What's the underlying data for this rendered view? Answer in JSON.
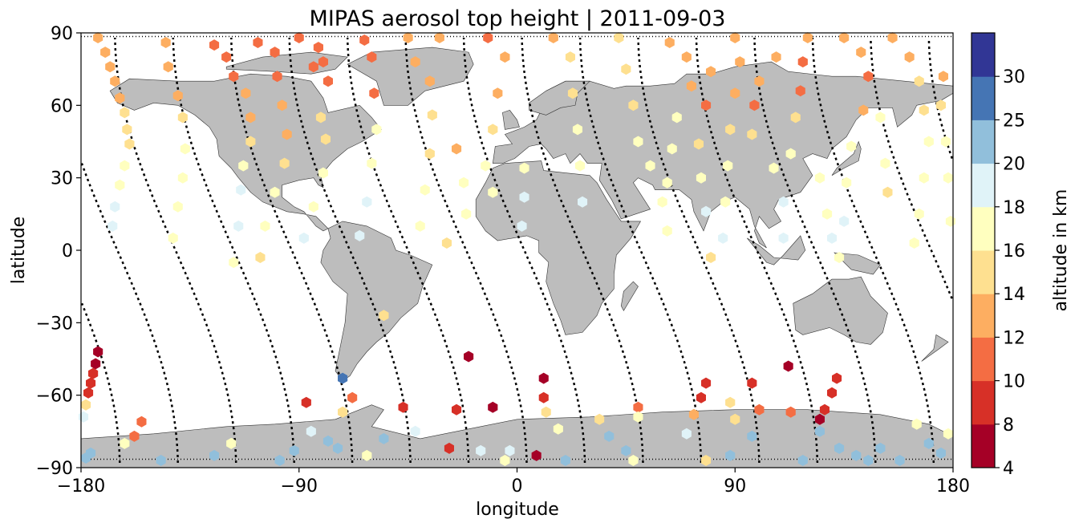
{
  "chart_data": {
    "type": "scatter",
    "title": "MIPAS aerosol top height | 2011-09-03",
    "xlabel": "longitude",
    "ylabel": "latitude",
    "xlim": [
      -180,
      180
    ],
    "ylim": [
      -90,
      90
    ],
    "xticks": [
      -180,
      -90,
      0,
      90,
      180
    ],
    "xtick_labels": [
      "−180",
      "−90",
      "0",
      "90",
      "180"
    ],
    "yticks": [
      -90,
      -60,
      -30,
      0,
      30,
      60,
      90
    ],
    "ytick_labels": [
      "−90",
      "−60",
      "−30",
      "0",
      "30",
      "60",
      "90"
    ],
    "colorbar": {
      "label": "altitude in km",
      "boundaries": [
        4,
        8,
        10,
        12,
        14,
        16,
        18,
        20,
        25,
        30
      ],
      "tick_labels": [
        "4",
        "8",
        "10",
        "12",
        "14",
        "16",
        "18",
        "20",
        "25",
        "30"
      ],
      "colors": [
        "#a50026",
        "#d73027",
        "#f46d43",
        "#fdae61",
        "#fee090",
        "#ffffbf",
        "#e0f3f8",
        "#91bfdb",
        "#4575b4",
        "#313695"
      ]
    },
    "background_map": "world land masses in light grey with country borders",
    "track_style": "black dotted orbit tracks where no aerosol top is detected",
    "colors": {
      "land": "#bdbdbd",
      "ocean": "#ffffff",
      "coast": "#333333",
      "track": "#000000"
    },
    "orbits": [
      {
        "lon0": -165,
        "dir": 1
      },
      {
        "lon0": -141,
        "dir": 1
      },
      {
        "lon0": -117,
        "dir": 1
      },
      {
        "lon0": -93,
        "dir": 1
      },
      {
        "lon0": -69,
        "dir": 1
      },
      {
        "lon0": -45,
        "dir": 1
      },
      {
        "lon0": -21,
        "dir": 1
      },
      {
        "lon0": 3,
        "dir": 1
      },
      {
        "lon0": 27,
        "dir": 1
      },
      {
        "lon0": 51,
        "dir": 1
      },
      {
        "lon0": 75,
        "dir": 1
      },
      {
        "lon0": 99,
        "dir": 1
      },
      {
        "lon0": 123,
        "dir": 1
      },
      {
        "lon0": 147,
        "dir": 1
      },
      {
        "lon0": 171,
        "dir": 1
      }
    ],
    "points": [
      {
        "lon": -173,
        "lat": 88,
        "alt": 13
      },
      {
        "lon": -170,
        "lat": 82,
        "alt": 13
      },
      {
        "lon": -168,
        "lat": 76,
        "alt": 13
      },
      {
        "lon": -166,
        "lat": 70,
        "alt": 13
      },
      {
        "lon": -164,
        "lat": 63,
        "alt": 13
      },
      {
        "lon": -162,
        "lat": 57,
        "alt": 15
      },
      {
        "lon": -161,
        "lat": 50,
        "alt": 15
      },
      {
        "lon": -160,
        "lat": 44,
        "alt": 15
      },
      {
        "lon": -162,
        "lat": 35,
        "alt": 17
      },
      {
        "lon": -164,
        "lat": 27,
        "alt": 17
      },
      {
        "lon": -166,
        "lat": 18,
        "alt": 19
      },
      {
        "lon": -167,
        "lat": 10,
        "alt": 19
      },
      {
        "lon": -173,
        "lat": -42,
        "alt": 7
      },
      {
        "lon": -174,
        "lat": -47,
        "alt": 7
      },
      {
        "lon": -175,
        "lat": -51,
        "alt": 9
      },
      {
        "lon": -176,
        "lat": -55,
        "alt": 9
      },
      {
        "lon": -177,
        "lat": -59,
        "alt": 9
      },
      {
        "lon": -178,
        "lat": -64,
        "alt": 15
      },
      {
        "lon": -179,
        "lat": -69,
        "alt": 19
      },
      {
        "lon": -178,
        "lat": -86,
        "alt": 22
      },
      {
        "lon": -176,
        "lat": -84,
        "alt": 22
      },
      {
        "lon": -155,
        "lat": -71,
        "alt": 11
      },
      {
        "lon": -158,
        "lat": -77,
        "alt": 11
      },
      {
        "lon": -162,
        "lat": -80,
        "alt": 17
      },
      {
        "lon": -145,
        "lat": 86,
        "alt": 13
      },
      {
        "lon": -144,
        "lat": 76,
        "alt": 13
      },
      {
        "lon": -140,
        "lat": 64,
        "alt": 13
      },
      {
        "lon": -138,
        "lat": 55,
        "alt": 15
      },
      {
        "lon": -137,
        "lat": 42,
        "alt": 17
      },
      {
        "lon": -138,
        "lat": 30,
        "alt": 17
      },
      {
        "lon": -140,
        "lat": 18,
        "alt": 17
      },
      {
        "lon": -142,
        "lat": 5,
        "alt": 17
      },
      {
        "lon": -147,
        "lat": -87,
        "alt": 22
      },
      {
        "lon": -125,
        "lat": 85,
        "alt": 11
      },
      {
        "lon": -120,
        "lat": 80,
        "alt": 11
      },
      {
        "lon": -117,
        "lat": 72,
        "alt": 11
      },
      {
        "lon": -112,
        "lat": 65,
        "alt": 13
      },
      {
        "lon": -110,
        "lat": 55,
        "alt": 13
      },
      {
        "lon": -110,
        "lat": 45,
        "alt": 15
      },
      {
        "lon": -113,
        "lat": 35,
        "alt": 17
      },
      {
        "lon": -114,
        "lat": 25,
        "alt": 19
      },
      {
        "lon": -115,
        "lat": 10,
        "alt": 19
      },
      {
        "lon": -117,
        "lat": -5,
        "alt": 17
      },
      {
        "lon": -125,
        "lat": -85,
        "alt": 22
      },
      {
        "lon": -118,
        "lat": -80,
        "alt": 17
      },
      {
        "lon": -107,
        "lat": 86,
        "alt": 11
      },
      {
        "lon": -100,
        "lat": 82,
        "alt": 11
      },
      {
        "lon": -99,
        "lat": 72,
        "alt": 11
      },
      {
        "lon": -97,
        "lat": 60,
        "alt": 13
      },
      {
        "lon": -95,
        "lat": 48,
        "alt": 13
      },
      {
        "lon": -96,
        "lat": 36,
        "alt": 15
      },
      {
        "lon": -100,
        "lat": 24,
        "alt": 17
      },
      {
        "lon": -104,
        "lat": 10,
        "alt": 17
      },
      {
        "lon": -106,
        "lat": -3,
        "alt": 15
      },
      {
        "lon": -98,
        "lat": -87,
        "alt": 22
      },
      {
        "lon": -92,
        "lat": -83,
        "alt": 22
      },
      {
        "lon": -87,
        "lat": -63,
        "alt": 9
      },
      {
        "lon": -85,
        "lat": -75,
        "alt": 19
      },
      {
        "lon": -90,
        "lat": 88,
        "alt": 11
      },
      {
        "lon": -82,
        "lat": 84,
        "alt": 11
      },
      {
        "lon": -80,
        "lat": 78,
        "alt": 11
      },
      {
        "lon": -78,
        "lat": 70,
        "alt": 11
      },
      {
        "lon": -84,
        "lat": 76,
        "alt": 11
      },
      {
        "lon": -81,
        "lat": 55,
        "alt": 15
      },
      {
        "lon": -79,
        "lat": 46,
        "alt": 15
      },
      {
        "lon": -80,
        "lat": 32,
        "alt": 17
      },
      {
        "lon": -84,
        "lat": 18,
        "alt": 17
      },
      {
        "lon": -88,
        "lat": 5,
        "alt": 19
      },
      {
        "lon": -72,
        "lat": -53,
        "alt": 27
      },
      {
        "lon": -74,
        "lat": -82,
        "alt": 22
      },
      {
        "lon": -78,
        "lat": -79,
        "alt": 22
      },
      {
        "lon": -72,
        "lat": -67,
        "alt": 15
      },
      {
        "lon": -68,
        "lat": -61,
        "alt": 11
      },
      {
        "lon": -63,
        "lat": 87,
        "alt": 11
      },
      {
        "lon": -60,
        "lat": 80,
        "alt": 11
      },
      {
        "lon": -59,
        "lat": 65,
        "alt": 11
      },
      {
        "lon": -58,
        "lat": 50,
        "alt": 17
      },
      {
        "lon": -60,
        "lat": 36,
        "alt": 17
      },
      {
        "lon": -62,
        "lat": 20,
        "alt": 19
      },
      {
        "lon": -65,
        "lat": 6,
        "alt": 19
      },
      {
        "lon": -55,
        "lat": -27,
        "alt": 15
      },
      {
        "lon": -62,
        "lat": -85,
        "alt": 17
      },
      {
        "lon": -55,
        "lat": -78,
        "alt": 22
      },
      {
        "lon": -47,
        "lat": -65,
        "alt": 9
      },
      {
        "lon": -42,
        "lat": -75,
        "alt": 19
      },
      {
        "lon": -45,
        "lat": 88,
        "alt": 13
      },
      {
        "lon": -42,
        "lat": 78,
        "alt": 13
      },
      {
        "lon": -36,
        "lat": 70,
        "alt": 13
      },
      {
        "lon": -35,
        "lat": 56,
        "alt": 15
      },
      {
        "lon": -36,
        "lat": 40,
        "alt": 15
      },
      {
        "lon": -38,
        "lat": 25,
        "alt": 17
      },
      {
        "lon": -40,
        "lat": 10,
        "alt": 17
      },
      {
        "lon": -32,
        "lat": 88,
        "alt": 13
      },
      {
        "lon": -25,
        "lat": 42,
        "alt": 13
      },
      {
        "lon": -22,
        "lat": 28,
        "alt": 17
      },
      {
        "lon": -21,
        "lat": 15,
        "alt": 17
      },
      {
        "lon": -29,
        "lat": 3,
        "alt": 15
      },
      {
        "lon": -20,
        "lat": -44,
        "alt": 7
      },
      {
        "lon": -25,
        "lat": -66,
        "alt": 9
      },
      {
        "lon": -28,
        "lat": -82,
        "alt": 9
      },
      {
        "lon": -10,
        "lat": -65,
        "alt": 7
      },
      {
        "lon": -15,
        "lat": -83,
        "alt": 19
      },
      {
        "lon": -12,
        "lat": 88,
        "alt": 11
      },
      {
        "lon": -5,
        "lat": 80,
        "alt": 13
      },
      {
        "lon": -8,
        "lat": 65,
        "alt": 13
      },
      {
        "lon": -10,
        "lat": 50,
        "alt": 15
      },
      {
        "lon": -13,
        "lat": 35,
        "alt": 17
      },
      {
        "lon": -10,
        "lat": 24,
        "alt": 17
      },
      {
        "lon": 3,
        "lat": 34,
        "alt": 17
      },
      {
        "lon": 3,
        "lat": 22,
        "alt": 19
      },
      {
        "lon": 2,
        "lat": 10,
        "alt": 19
      },
      {
        "lon": 11,
        "lat": -53,
        "alt": 7
      },
      {
        "lon": 11,
        "lat": -61,
        "alt": 9
      },
      {
        "lon": 12,
        "lat": -67,
        "alt": 15
      },
      {
        "lon": 17,
        "lat": -74,
        "alt": 17
      },
      {
        "lon": 8,
        "lat": -85,
        "alt": 7
      },
      {
        "lon": -3,
        "lat": -83,
        "alt": 19
      },
      {
        "lon": -5,
        "lat": -87,
        "alt": 17
      },
      {
        "lon": 15,
        "lat": 88,
        "alt": 13
      },
      {
        "lon": 22,
        "lat": 80,
        "alt": 15
      },
      {
        "lon": 23,
        "lat": 65,
        "alt": 15
      },
      {
        "lon": 25,
        "lat": 50,
        "alt": 17
      },
      {
        "lon": 26,
        "lat": 35,
        "alt": 17
      },
      {
        "lon": 27,
        "lat": 20,
        "alt": 19
      },
      {
        "lon": 20,
        "lat": -87,
        "alt": 22
      },
      {
        "lon": 34,
        "lat": -70,
        "alt": 15
      },
      {
        "lon": 38,
        "lat": -77,
        "alt": 22
      },
      {
        "lon": 42,
        "lat": 88,
        "alt": 15
      },
      {
        "lon": 45,
        "lat": 75,
        "alt": 15
      },
      {
        "lon": 48,
        "lat": 60,
        "alt": 15
      },
      {
        "lon": 50,
        "lat": 45,
        "alt": 17
      },
      {
        "lon": 55,
        "lat": 35,
        "alt": 17
      },
      {
        "lon": 60,
        "lat": 20,
        "alt": 17
      },
      {
        "lon": 62,
        "lat": 8,
        "alt": 17
      },
      {
        "lon": 50,
        "lat": -65,
        "alt": 11
      },
      {
        "lon": 50,
        "lat": -69,
        "alt": 17
      },
      {
        "lon": 45,
        "lat": -83,
        "alt": 22
      },
      {
        "lon": 48,
        "lat": -87,
        "alt": 17
      },
      {
        "lon": 63,
        "lat": 86,
        "alt": 13
      },
      {
        "lon": 70,
        "lat": 80,
        "alt": 13
      },
      {
        "lon": 72,
        "lat": 68,
        "alt": 13
      },
      {
        "lon": 66,
        "lat": 55,
        "alt": 17
      },
      {
        "lon": 64,
        "lat": 42,
        "alt": 17
      },
      {
        "lon": 62,
        "lat": 28,
        "alt": 17
      },
      {
        "lon": 80,
        "lat": 74,
        "alt": 13
      },
      {
        "lon": 78,
        "lat": 60,
        "alt": 11
      },
      {
        "lon": 75,
        "lat": 44,
        "alt": 15
      },
      {
        "lon": 76,
        "lat": 30,
        "alt": 17
      },
      {
        "lon": 78,
        "lat": 16,
        "alt": 19
      },
      {
        "lon": 80,
        "lat": -3,
        "alt": 15
      },
      {
        "lon": 78,
        "lat": -55,
        "alt": 9
      },
      {
        "lon": 76,
        "lat": -61,
        "alt": 9
      },
      {
        "lon": 73,
        "lat": -68,
        "alt": 13
      },
      {
        "lon": 70,
        "lat": -76,
        "alt": 19
      },
      {
        "lon": 78,
        "lat": -87,
        "alt": 15
      },
      {
        "lon": 88,
        "lat": -85,
        "alt": 22
      },
      {
        "lon": 90,
        "lat": 88,
        "alt": 13
      },
      {
        "lon": 92,
        "lat": 78,
        "alt": 13
      },
      {
        "lon": 90,
        "lat": 65,
        "alt": 13
      },
      {
        "lon": 88,
        "lat": 50,
        "alt": 15
      },
      {
        "lon": 87,
        "lat": 35,
        "alt": 17
      },
      {
        "lon": 86,
        "lat": 20,
        "alt": 17
      },
      {
        "lon": 85,
        "lat": 5,
        "alt": 19
      },
      {
        "lon": 88,
        "lat": -63,
        "alt": 15
      },
      {
        "lon": 90,
        "lat": -70,
        "alt": 15
      },
      {
        "lon": 97,
        "lat": -77,
        "alt": 22
      },
      {
        "lon": 100,
        "lat": -66,
        "alt": 11
      },
      {
        "lon": 97,
        "lat": -55,
        "alt": 9
      },
      {
        "lon": 112,
        "lat": -48,
        "alt": 7
      },
      {
        "lon": 107,
        "lat": 80,
        "alt": 13
      },
      {
        "lon": 100,
        "lat": 70,
        "alt": 13
      },
      {
        "lon": 98,
        "lat": 60,
        "alt": 11
      },
      {
        "lon": 97,
        "lat": 48,
        "alt": 15
      },
      {
        "lon": 106,
        "lat": 34,
        "alt": 17
      },
      {
        "lon": 110,
        "lat": 20,
        "alt": 19
      },
      {
        "lon": 110,
        "lat": 5,
        "alt": 19
      },
      {
        "lon": 113,
        "lat": -67,
        "alt": 11
      },
      {
        "lon": 118,
        "lat": -87,
        "alt": 22
      },
      {
        "lon": 125,
        "lat": -75,
        "alt": 22
      },
      {
        "lon": 120,
        "lat": 88,
        "alt": 13
      },
      {
        "lon": 118,
        "lat": 78,
        "alt": 11
      },
      {
        "lon": 117,
        "lat": 66,
        "alt": 11
      },
      {
        "lon": 115,
        "lat": 55,
        "alt": 15
      },
      {
        "lon": 113,
        "lat": 40,
        "alt": 17
      },
      {
        "lon": 125,
        "lat": 30,
        "alt": 17
      },
      {
        "lon": 128,
        "lat": 15,
        "alt": 17
      },
      {
        "lon": 130,
        "lat": 5,
        "alt": 19
      },
      {
        "lon": 132,
        "lat": -53,
        "alt": 9
      },
      {
        "lon": 130,
        "lat": -59,
        "alt": 9
      },
      {
        "lon": 127,
        "lat": -66,
        "alt": 9
      },
      {
        "lon": 125,
        "lat": -70,
        "alt": 7
      },
      {
        "lon": 133,
        "lat": -82,
        "alt": 22
      },
      {
        "lon": 135,
        "lat": 88,
        "alt": 13
      },
      {
        "lon": 142,
        "lat": 82,
        "alt": 13
      },
      {
        "lon": 145,
        "lat": 72,
        "alt": 11
      },
      {
        "lon": 143,
        "lat": 58,
        "alt": 13
      },
      {
        "lon": 138,
        "lat": 43,
        "alt": 17
      },
      {
        "lon": 136,
        "lat": 28,
        "alt": 17
      },
      {
        "lon": 135,
        "lat": 12,
        "alt": 19
      },
      {
        "lon": 133,
        "lat": -3,
        "alt": 17
      },
      {
        "lon": 150,
        "lat": 55,
        "alt": 17
      },
      {
        "lon": 152,
        "lat": 36,
        "alt": 17
      },
      {
        "lon": 153,
        "lat": 24,
        "alt": 15
      },
      {
        "lon": 140,
        "lat": -85,
        "alt": 22
      },
      {
        "lon": 145,
        "lat": -87,
        "alt": 22
      },
      {
        "lon": 150,
        "lat": -82,
        "alt": 22
      },
      {
        "lon": 155,
        "lat": 88,
        "alt": 13
      },
      {
        "lon": 162,
        "lat": 80,
        "alt": 13
      },
      {
        "lon": 166,
        "lat": 70,
        "alt": 15
      },
      {
        "lon": 168,
        "lat": 58,
        "alt": 15
      },
      {
        "lon": 170,
        "lat": 45,
        "alt": 17
      },
      {
        "lon": 168,
        "lat": 30,
        "alt": 17
      },
      {
        "lon": 166,
        "lat": 15,
        "alt": 17
      },
      {
        "lon": 164,
        "lat": 3,
        "alt": 17
      },
      {
        "lon": 176,
        "lat": 72,
        "alt": 13
      },
      {
        "lon": 175,
        "lat": 60,
        "alt": 15
      },
      {
        "lon": 177,
        "lat": 45,
        "alt": 17
      },
      {
        "lon": 178,
        "lat": 30,
        "alt": 17
      },
      {
        "lon": 179,
        "lat": 12,
        "alt": 17
      },
      {
        "lon": 165,
        "lat": -72,
        "alt": 17
      },
      {
        "lon": 170,
        "lat": -80,
        "alt": 22
      },
      {
        "lon": 175,
        "lat": -84,
        "alt": 22
      },
      {
        "lon": 178,
        "lat": -76,
        "alt": 17
      },
      {
        "lon": 158,
        "lat": -87,
        "alt": 22
      }
    ]
  }
}
